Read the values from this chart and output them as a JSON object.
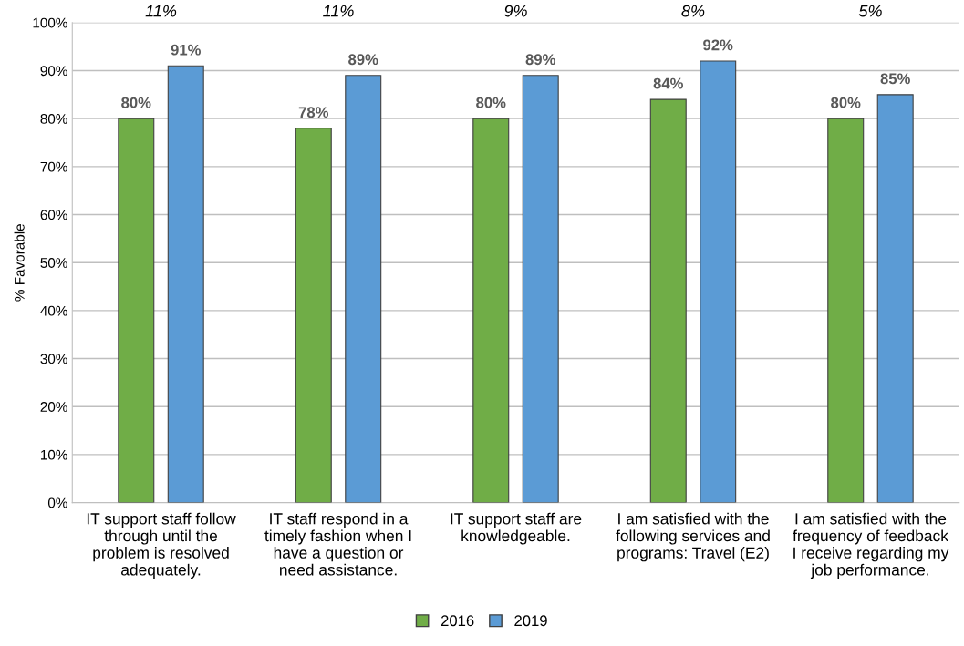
{
  "chart_data": {
    "type": "bar",
    "ylabel": "% Favorable",
    "categories": [
      "IT support staff follow\nthrough until the\nproblem is resolved\nadequately.",
      "IT staff respond in a\ntimely fashion when I\nhave a question or\nneed assistance.",
      "IT support staff are\nknowledgeable.",
      "I am satisfied with the\nfollowing services and\nprograms: Travel (E2)",
      "I am satisfied with the\nfrequency of feedback\nI receive regarding my\njob performance."
    ],
    "series": [
      {
        "name": "2016",
        "color": "#70ad47",
        "values": [
          80,
          78,
          80,
          84,
          80
        ],
        "value_labels": [
          "80%",
          "78%",
          "80%",
          "84%",
          "80%"
        ]
      },
      {
        "name": "2019",
        "color": "#5b9bd5",
        "values": [
          91,
          89,
          89,
          92,
          85
        ],
        "value_labels": [
          "91%",
          "89%",
          "89%",
          "92%",
          "85%"
        ]
      }
    ],
    "ylim": [
      0,
      100
    ],
    "yticks": [
      {
        "value": 0,
        "label": "0%"
      },
      {
        "value": 10,
        "label": "10%"
      },
      {
        "value": 20,
        "label": "20%"
      },
      {
        "value": 30,
        "label": "30%"
      },
      {
        "value": 40,
        "label": "40%"
      },
      {
        "value": 50,
        "label": "50%"
      },
      {
        "value": 60,
        "label": "60%"
      },
      {
        "value": 70,
        "label": "70%"
      },
      {
        "value": 80,
        "label": "80%"
      },
      {
        "value": 90,
        "label": "90%"
      },
      {
        "value": 100,
        "label": "100%"
      }
    ],
    "grid": "y",
    "legend": "bottom",
    "annotations": [
      "11%",
      "11%",
      "9%",
      "8%",
      "5%"
    ]
  }
}
